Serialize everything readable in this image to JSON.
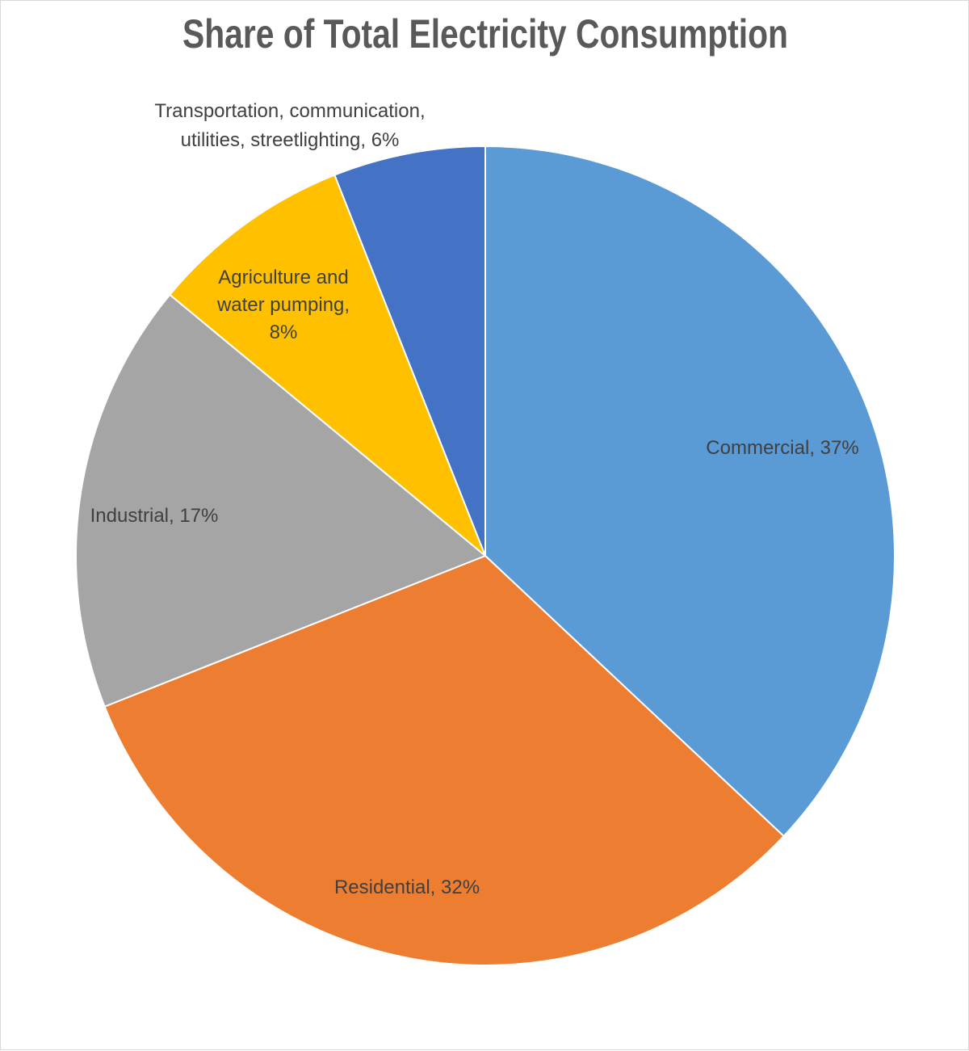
{
  "chart_data": {
    "type": "pie",
    "title": "Share of Total Electricity Consumption",
    "start_angle": "top, clockwise",
    "slices": [
      {
        "name": "Commercial",
        "value": 37,
        "label_lines": [
          "Commercial, 37%"
        ],
        "color": "#5B9BD5"
      },
      {
        "name": "Residential",
        "value": 32,
        "label_lines": [
          "Residential, 32%"
        ],
        "color": "#ED7D31"
      },
      {
        "name": "Industrial",
        "value": 17,
        "label_lines": [
          "Industrial, 17%"
        ],
        "color": "#A5A5A5"
      },
      {
        "name": "Agriculture and water pumping",
        "value": 8,
        "label_lines": [
          "Agriculture and",
          "water pumping,",
          "8%"
        ],
        "color": "#FFC000"
      },
      {
        "name": "Transportation, communication, utilities, streetlighting",
        "value": 6,
        "label_lines": [
          "Transportation, communication,",
          "utilities, streetlighting, 6%"
        ],
        "color": "#4472C4"
      }
    ],
    "unit": "%",
    "legend": "none"
  }
}
